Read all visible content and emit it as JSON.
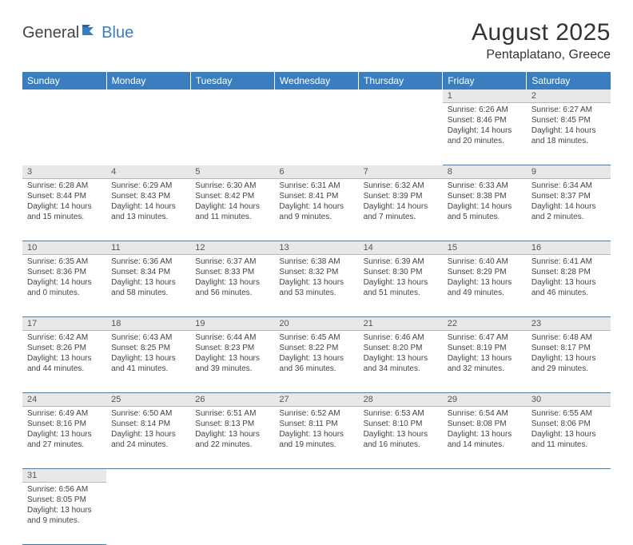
{
  "logo": {
    "word1": "General",
    "word2": "Blue"
  },
  "title": "August 2025",
  "location": "Pentaplatano, Greece",
  "colors": {
    "header_bg": "#3a7ebf",
    "header_fg": "#ffffff",
    "daynum_bg": "#e8e8e8",
    "border": "#3a7ebf",
    "text": "#444444",
    "logo_blue": "#3a7ebf"
  },
  "weekdays": [
    "Sunday",
    "Monday",
    "Tuesday",
    "Wednesday",
    "Thursday",
    "Friday",
    "Saturday"
  ],
  "weeks": [
    [
      null,
      null,
      null,
      null,
      null,
      {
        "n": "1",
        "sunrise": "Sunrise: 6:26 AM",
        "sunset": "Sunset: 8:46 PM",
        "daylight": "Daylight: 14 hours and 20 minutes."
      },
      {
        "n": "2",
        "sunrise": "Sunrise: 6:27 AM",
        "sunset": "Sunset: 8:45 PM",
        "daylight": "Daylight: 14 hours and 18 minutes."
      }
    ],
    [
      {
        "n": "3",
        "sunrise": "Sunrise: 6:28 AM",
        "sunset": "Sunset: 8:44 PM",
        "daylight": "Daylight: 14 hours and 15 minutes."
      },
      {
        "n": "4",
        "sunrise": "Sunrise: 6:29 AM",
        "sunset": "Sunset: 8:43 PM",
        "daylight": "Daylight: 14 hours and 13 minutes."
      },
      {
        "n": "5",
        "sunrise": "Sunrise: 6:30 AM",
        "sunset": "Sunset: 8:42 PM",
        "daylight": "Daylight: 14 hours and 11 minutes."
      },
      {
        "n": "6",
        "sunrise": "Sunrise: 6:31 AM",
        "sunset": "Sunset: 8:41 PM",
        "daylight": "Daylight: 14 hours and 9 minutes."
      },
      {
        "n": "7",
        "sunrise": "Sunrise: 6:32 AM",
        "sunset": "Sunset: 8:39 PM",
        "daylight": "Daylight: 14 hours and 7 minutes."
      },
      {
        "n": "8",
        "sunrise": "Sunrise: 6:33 AM",
        "sunset": "Sunset: 8:38 PM",
        "daylight": "Daylight: 14 hours and 5 minutes."
      },
      {
        "n": "9",
        "sunrise": "Sunrise: 6:34 AM",
        "sunset": "Sunset: 8:37 PM",
        "daylight": "Daylight: 14 hours and 2 minutes."
      }
    ],
    [
      {
        "n": "10",
        "sunrise": "Sunrise: 6:35 AM",
        "sunset": "Sunset: 8:36 PM",
        "daylight": "Daylight: 14 hours and 0 minutes."
      },
      {
        "n": "11",
        "sunrise": "Sunrise: 6:36 AM",
        "sunset": "Sunset: 8:34 PM",
        "daylight": "Daylight: 13 hours and 58 minutes."
      },
      {
        "n": "12",
        "sunrise": "Sunrise: 6:37 AM",
        "sunset": "Sunset: 8:33 PM",
        "daylight": "Daylight: 13 hours and 56 minutes."
      },
      {
        "n": "13",
        "sunrise": "Sunrise: 6:38 AM",
        "sunset": "Sunset: 8:32 PM",
        "daylight": "Daylight: 13 hours and 53 minutes."
      },
      {
        "n": "14",
        "sunrise": "Sunrise: 6:39 AM",
        "sunset": "Sunset: 8:30 PM",
        "daylight": "Daylight: 13 hours and 51 minutes."
      },
      {
        "n": "15",
        "sunrise": "Sunrise: 6:40 AM",
        "sunset": "Sunset: 8:29 PM",
        "daylight": "Daylight: 13 hours and 49 minutes."
      },
      {
        "n": "16",
        "sunrise": "Sunrise: 6:41 AM",
        "sunset": "Sunset: 8:28 PM",
        "daylight": "Daylight: 13 hours and 46 minutes."
      }
    ],
    [
      {
        "n": "17",
        "sunrise": "Sunrise: 6:42 AM",
        "sunset": "Sunset: 8:26 PM",
        "daylight": "Daylight: 13 hours and 44 minutes."
      },
      {
        "n": "18",
        "sunrise": "Sunrise: 6:43 AM",
        "sunset": "Sunset: 8:25 PM",
        "daylight": "Daylight: 13 hours and 41 minutes."
      },
      {
        "n": "19",
        "sunrise": "Sunrise: 6:44 AM",
        "sunset": "Sunset: 8:23 PM",
        "daylight": "Daylight: 13 hours and 39 minutes."
      },
      {
        "n": "20",
        "sunrise": "Sunrise: 6:45 AM",
        "sunset": "Sunset: 8:22 PM",
        "daylight": "Daylight: 13 hours and 36 minutes."
      },
      {
        "n": "21",
        "sunrise": "Sunrise: 6:46 AM",
        "sunset": "Sunset: 8:20 PM",
        "daylight": "Daylight: 13 hours and 34 minutes."
      },
      {
        "n": "22",
        "sunrise": "Sunrise: 6:47 AM",
        "sunset": "Sunset: 8:19 PM",
        "daylight": "Daylight: 13 hours and 32 minutes."
      },
      {
        "n": "23",
        "sunrise": "Sunrise: 6:48 AM",
        "sunset": "Sunset: 8:17 PM",
        "daylight": "Daylight: 13 hours and 29 minutes."
      }
    ],
    [
      {
        "n": "24",
        "sunrise": "Sunrise: 6:49 AM",
        "sunset": "Sunset: 8:16 PM",
        "daylight": "Daylight: 13 hours and 27 minutes."
      },
      {
        "n": "25",
        "sunrise": "Sunrise: 6:50 AM",
        "sunset": "Sunset: 8:14 PM",
        "daylight": "Daylight: 13 hours and 24 minutes."
      },
      {
        "n": "26",
        "sunrise": "Sunrise: 6:51 AM",
        "sunset": "Sunset: 8:13 PM",
        "daylight": "Daylight: 13 hours and 22 minutes."
      },
      {
        "n": "27",
        "sunrise": "Sunrise: 6:52 AM",
        "sunset": "Sunset: 8:11 PM",
        "daylight": "Daylight: 13 hours and 19 minutes."
      },
      {
        "n": "28",
        "sunrise": "Sunrise: 6:53 AM",
        "sunset": "Sunset: 8:10 PM",
        "daylight": "Daylight: 13 hours and 16 minutes."
      },
      {
        "n": "29",
        "sunrise": "Sunrise: 6:54 AM",
        "sunset": "Sunset: 8:08 PM",
        "daylight": "Daylight: 13 hours and 14 minutes."
      },
      {
        "n": "30",
        "sunrise": "Sunrise: 6:55 AM",
        "sunset": "Sunset: 8:06 PM",
        "daylight": "Daylight: 13 hours and 11 minutes."
      }
    ],
    [
      {
        "n": "31",
        "sunrise": "Sunrise: 6:56 AM",
        "sunset": "Sunset: 8:05 PM",
        "daylight": "Daylight: 13 hours and 9 minutes."
      },
      null,
      null,
      null,
      null,
      null,
      null
    ]
  ]
}
